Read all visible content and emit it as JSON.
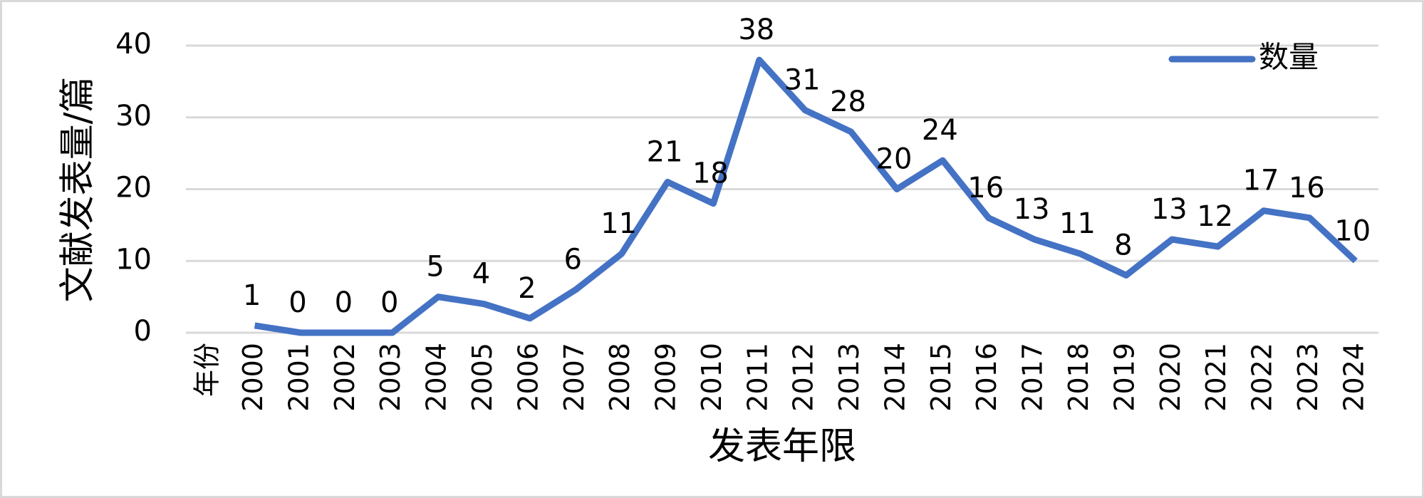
{
  "chart_data": {
    "type": "line",
    "y_label": "文献发表量/篇",
    "x_label": "发表年限",
    "categories": [
      "年份",
      "2000",
      "2001",
      "2002",
      "2003",
      "2004",
      "2005",
      "2006",
      "2007",
      "2008",
      "2009",
      "2010",
      "2011",
      "2012",
      "2013",
      "2014",
      "2015",
      "2016",
      "2017",
      "2018",
      "2019",
      "2020",
      "2021",
      "2022",
      "2023",
      "2024"
    ],
    "series": [
      {
        "name": "数量",
        "color": "#4472c4",
        "values": [
          null,
          1,
          0,
          0,
          0,
          5,
          4,
          2,
          6,
          11,
          21,
          18,
          38,
          31,
          28,
          20,
          24,
          16,
          13,
          11,
          8,
          13,
          12,
          17,
          16,
          10
        ]
      }
    ],
    "ylim": [
      0,
      40
    ],
    "yticks": [
      0,
      10,
      20,
      30,
      40
    ],
    "grid": true,
    "legend": "top-right"
  }
}
